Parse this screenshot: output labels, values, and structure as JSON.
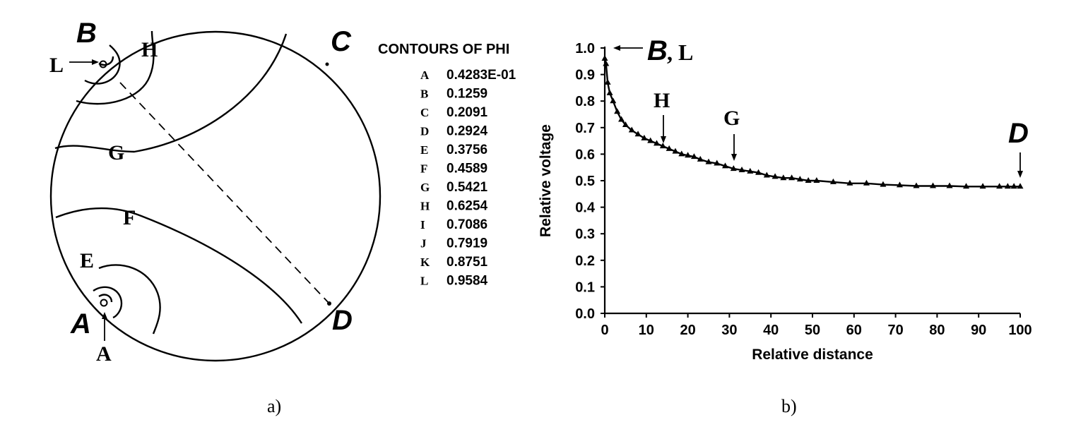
{
  "panel_a": {
    "caption": "a)",
    "title": "CONTOURS OF PHI",
    "points": {
      "B": "B",
      "C": "C",
      "A": "A",
      "D": "D"
    },
    "contour_marks": {
      "H": "H",
      "G": "G",
      "F": "F",
      "E": "E"
    },
    "arrow_labels": {
      "L": "L",
      "A": "A"
    },
    "contours": [
      {
        "key": "A",
        "value": "0.4283E-01"
      },
      {
        "key": "B",
        "value": "0.1259"
      },
      {
        "key": "C",
        "value": "0.2091"
      },
      {
        "key": "D",
        "value": "0.2924"
      },
      {
        "key": "E",
        "value": "0.3756"
      },
      {
        "key": "F",
        "value": "0.4589"
      },
      {
        "key": "G",
        "value": "0.5421"
      },
      {
        "key": "H",
        "value": "0.6254"
      },
      {
        "key": "I",
        "value": "0.7086"
      },
      {
        "key": "J",
        "value": "0.7919"
      },
      {
        "key": "K",
        "value": "0.8751"
      },
      {
        "key": "L",
        "value": "0.9584"
      }
    ]
  },
  "panel_b": {
    "caption": "b)",
    "annotations": {
      "BL_italic": "B",
      "BL_rest": ", L",
      "H": "H",
      "G": "G",
      "D": "D"
    }
  },
  "chart_data": {
    "type": "line",
    "title": "",
    "xlabel": "Relative distance",
    "ylabel": "Relative voltage",
    "xlim": [
      0,
      100
    ],
    "ylim": [
      0.0,
      1.0
    ],
    "xticks": [
      0,
      10,
      20,
      30,
      40,
      50,
      60,
      70,
      80,
      90,
      100
    ],
    "yticks": [
      "0.0",
      "0.1",
      "0.2",
      "0.3",
      "0.4",
      "0.5",
      "0.6",
      "0.7",
      "0.8",
      "0.9",
      "1.0"
    ],
    "grid": false,
    "series": [
      {
        "x": [
          0,
          0.3,
          0.7,
          1.2,
          2,
          3,
          4,
          5,
          6.5,
          8,
          9.5,
          11,
          12.5,
          14,
          15.5,
          17,
          18.5,
          20,
          21.5,
          23,
          25,
          27,
          29,
          31,
          33,
          35,
          37,
          39,
          41,
          43,
          45,
          47,
          49,
          51,
          55,
          59,
          63,
          67,
          71,
          75,
          79,
          83,
          87,
          91,
          95,
          97,
          98.5,
          100
        ],
        "y": [
          0.96,
          0.94,
          0.87,
          0.83,
          0.8,
          0.76,
          0.73,
          0.71,
          0.69,
          0.675,
          0.66,
          0.65,
          0.64,
          0.63,
          0.62,
          0.61,
          0.6,
          0.595,
          0.59,
          0.58,
          0.57,
          0.565,
          0.555,
          0.545,
          0.54,
          0.535,
          0.53,
          0.52,
          0.515,
          0.51,
          0.51,
          0.505,
          0.5,
          0.5,
          0.495,
          0.49,
          0.49,
          0.485,
          0.483,
          0.48,
          0.48,
          0.48,
          0.478,
          0.478,
          0.478,
          0.478,
          0.478,
          0.478
        ]
      }
    ]
  }
}
